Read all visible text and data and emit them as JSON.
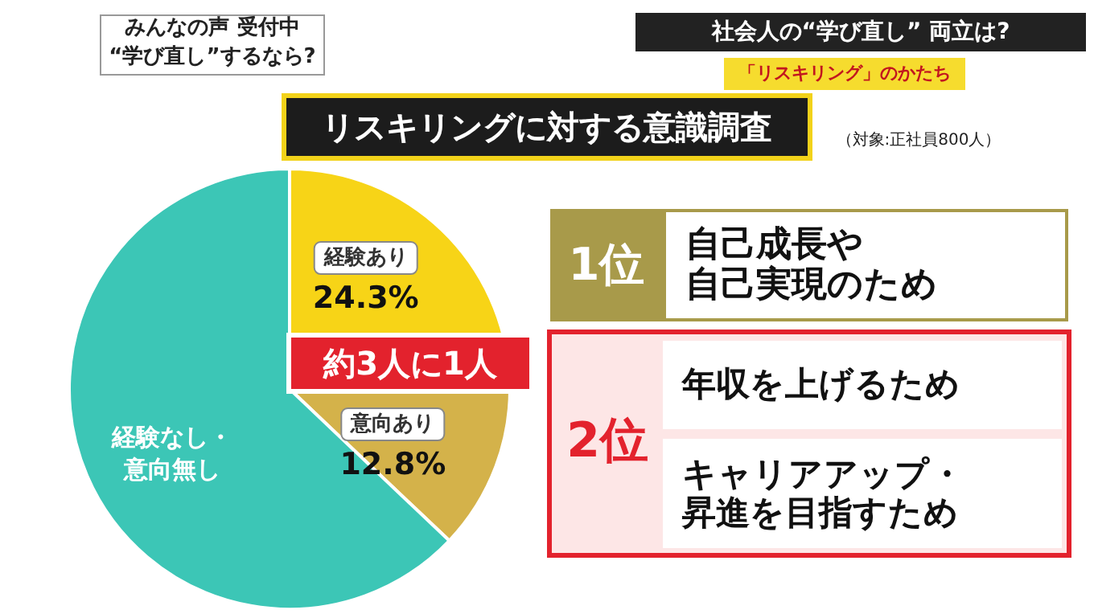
{
  "chart_data": {
    "type": "pie",
    "title": "リスキリングに対する意識調査",
    "categories": [
      "経験あり",
      "意向あり",
      "経験なし・意向無し"
    ],
    "values": [
      24.3,
      12.8,
      62.9
    ],
    "colors": [
      "#f7d417",
      "#d4b24a",
      "#3cc6b6"
    ],
    "value_labels": [
      "24.3%",
      "12.8%",
      null
    ],
    "annotations": [
      "約3人に1人",
      "（対象:正社員800人）",
      "みんなの声 受付中",
      "“学び直し”するなら?",
      "社会人の“学び直し” 両立は?",
      "「リスキリング」のかたち",
      "1位",
      "自己成長や",
      "自己実現のため",
      "2位",
      "年収を上げるため",
      "キャリアアップ・",
      "昇進を目指すため"
    ]
  }
}
